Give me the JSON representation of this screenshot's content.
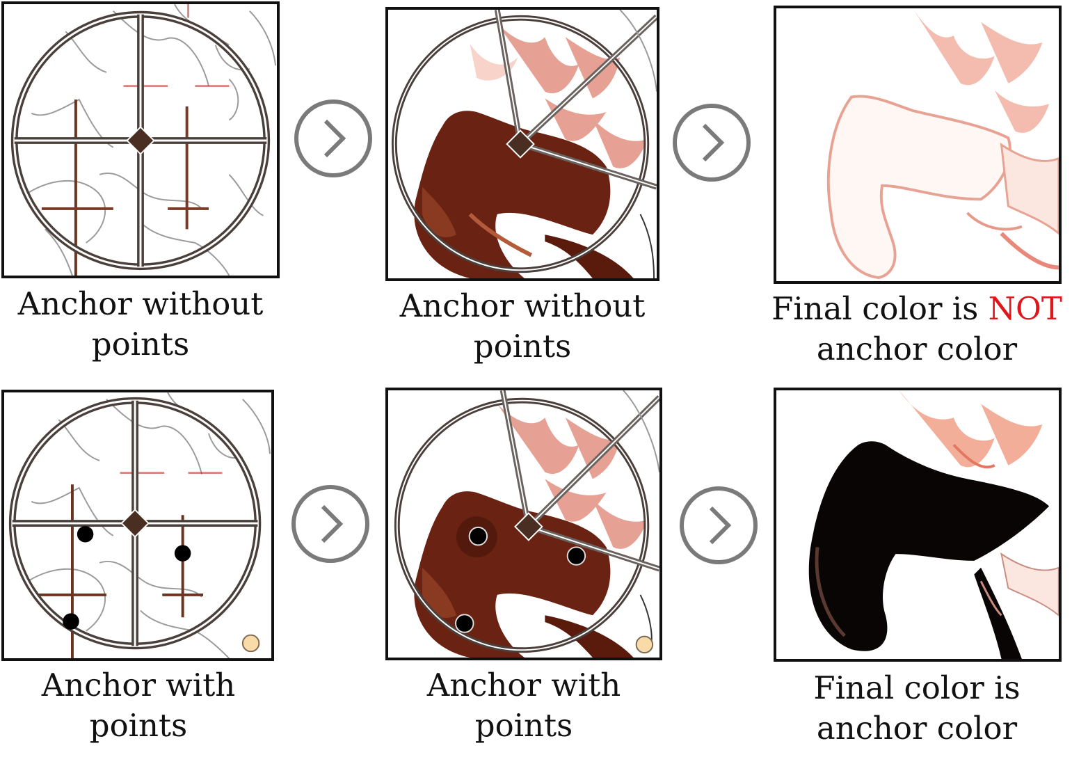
{
  "row_top": {
    "caption_1": [
      "Anchor without",
      "points"
    ],
    "caption_2": [
      "Anchor without",
      "points"
    ],
    "caption_3_prefix": "Final color is ",
    "caption_3_emph": "NOT",
    "caption_3_line2": "anchor color"
  },
  "row_bottom": {
    "caption_1": [
      "Anchor with",
      "points"
    ],
    "caption_2": [
      "Anchor with",
      "points"
    ],
    "caption_3": [
      "Final color is",
      "anchor color"
    ]
  },
  "colors": {
    "emphasis": "#e4141b",
    "anchor_brown": "#5b2a1b",
    "final_black": "#0a0505",
    "line_red": "#c44a3d"
  },
  "icons": {
    "step_arrow": "chevron-right-circle-icon",
    "anchor": "diamond-anchor-icon",
    "point": "dot-point-icon"
  }
}
